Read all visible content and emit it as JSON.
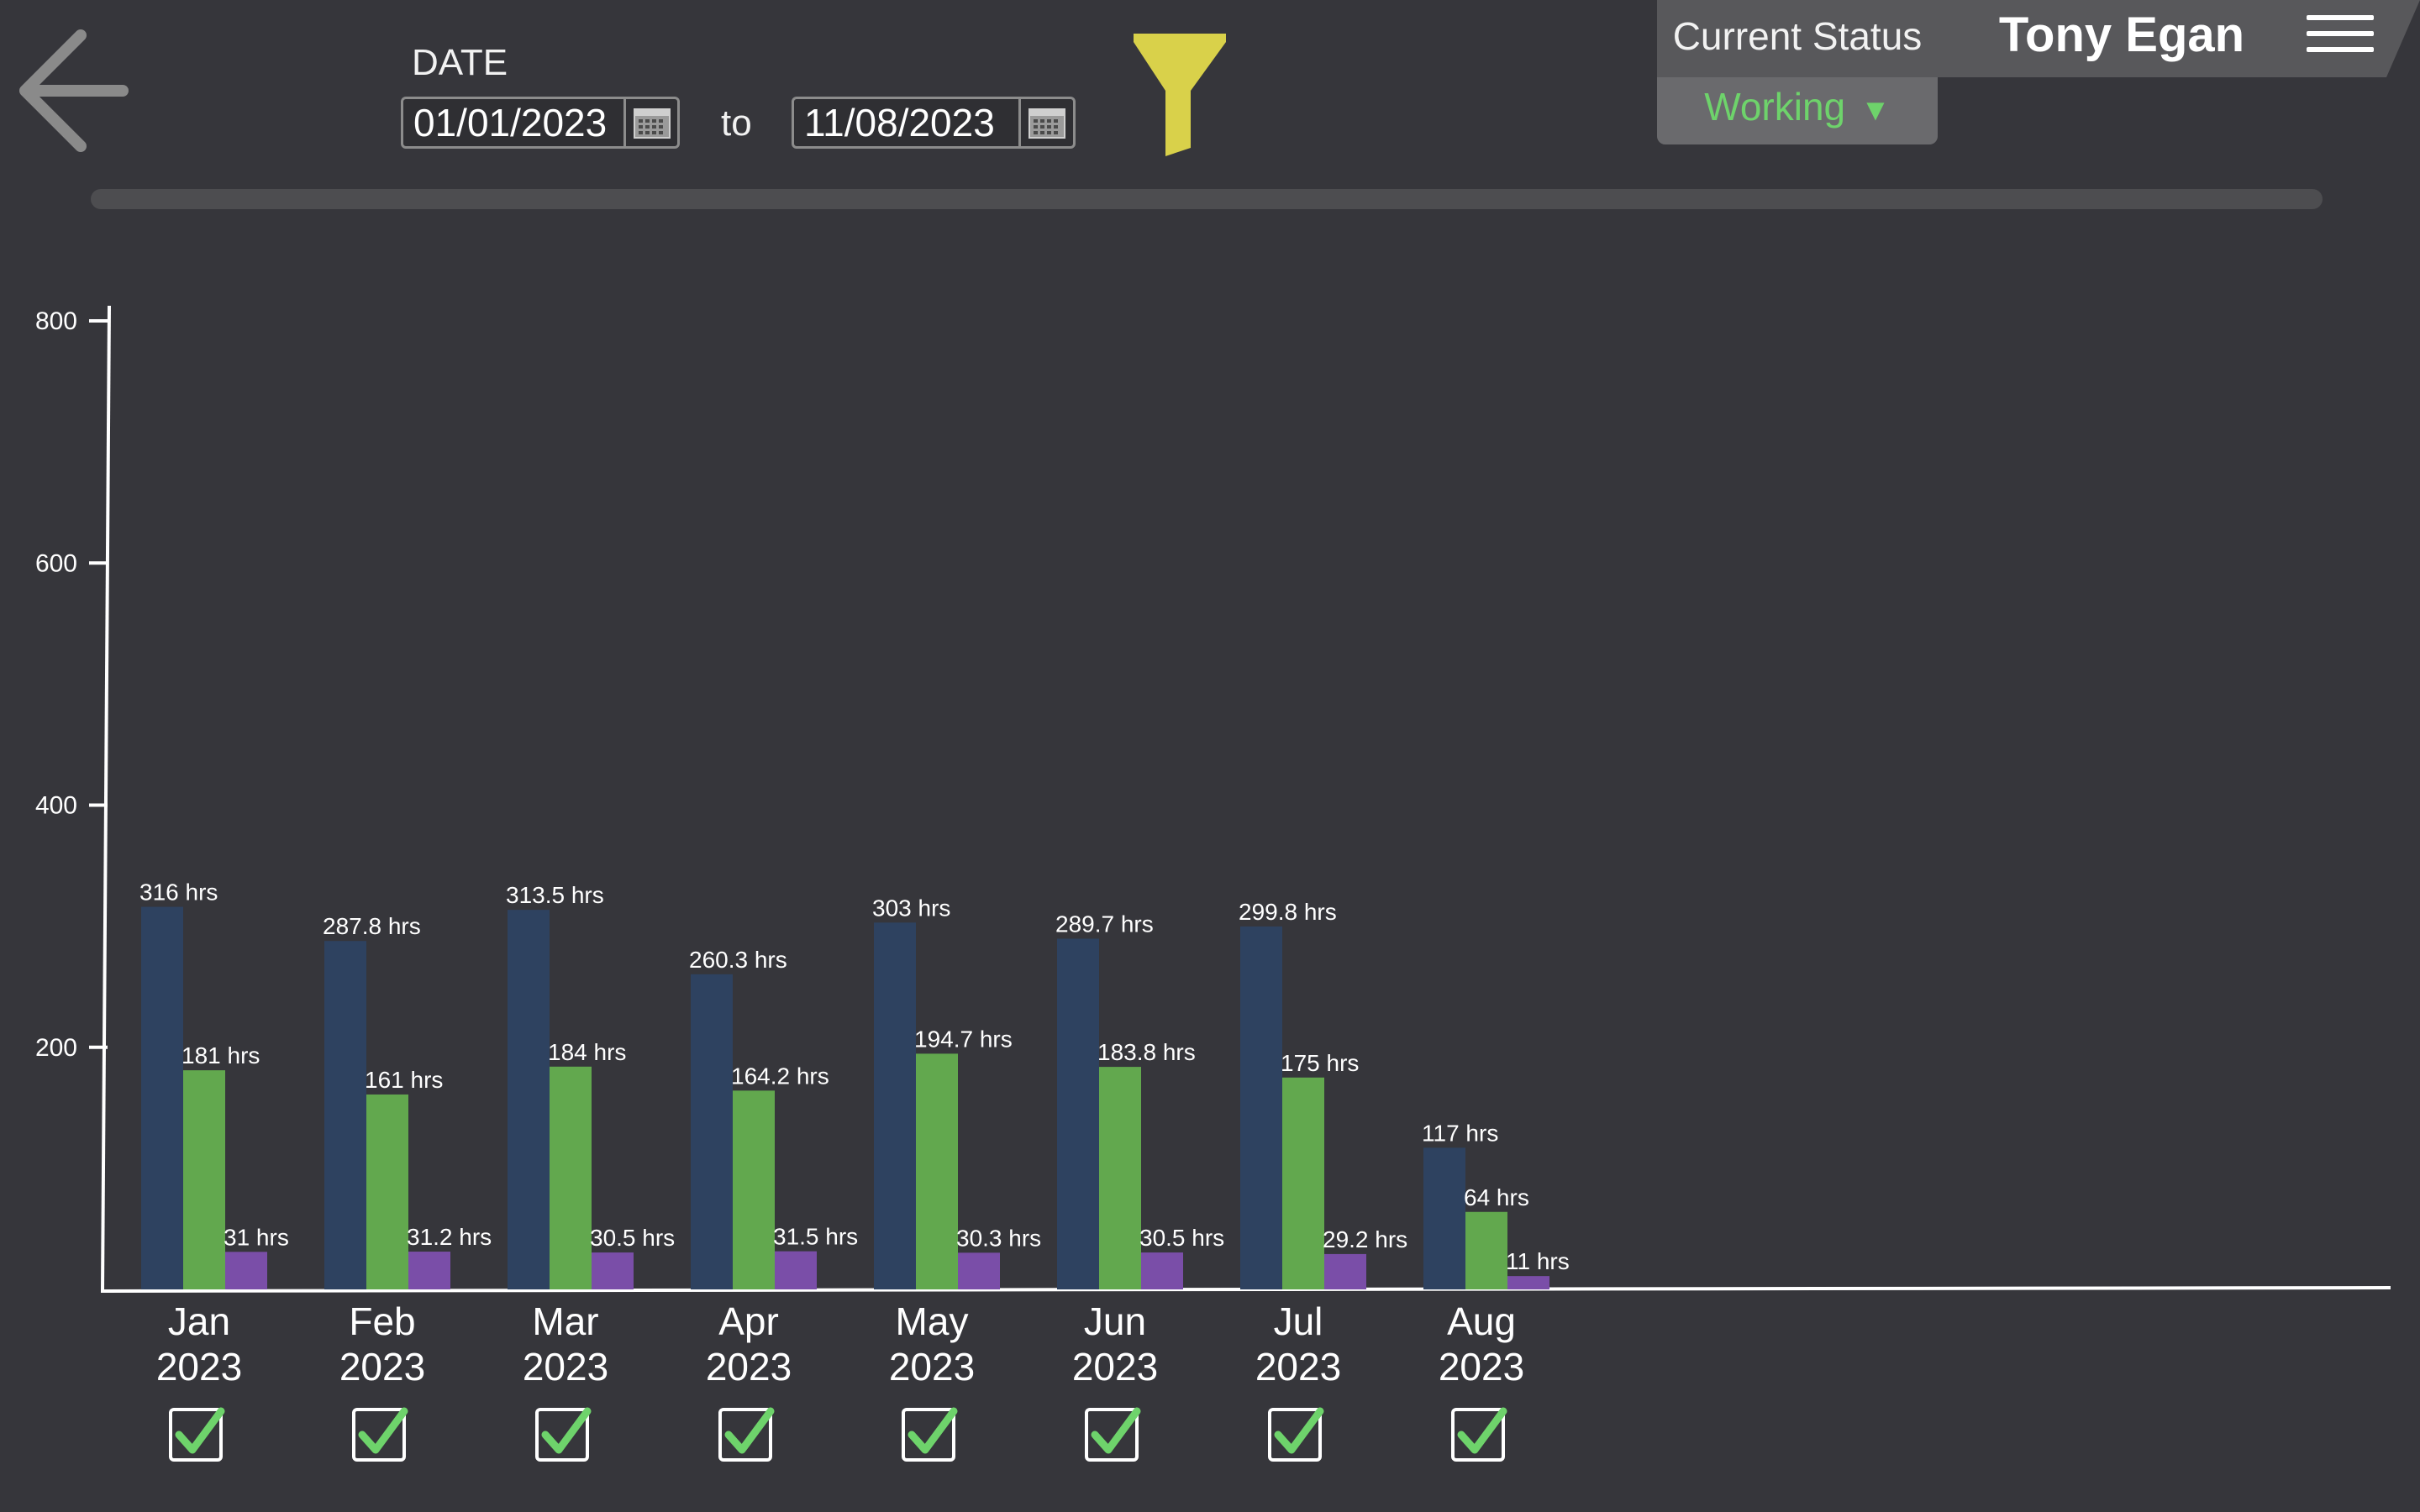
{
  "header": {
    "date_label": "DATE",
    "start_date": "01/01/2023",
    "to_label": "to",
    "end_date": "11/08/2023",
    "filter_color": "#d9d14a"
  },
  "status": {
    "label": "Current Status",
    "value": "Working",
    "value_color": "#6ed36b"
  },
  "user": {
    "name": "Tony Egan"
  },
  "chart_data": {
    "type": "bar",
    "categories": [
      "Jan 2023",
      "Feb 2023",
      "Mar 2023",
      "Apr 2023",
      "May 2023",
      "Jun 2023",
      "Jul 2023",
      "Aug 2023"
    ],
    "ylim": [
      0,
      800
    ],
    "yticks": [
      200,
      400,
      600,
      800
    ],
    "grid": false,
    "series": [
      {
        "color": "#2e4260",
        "values": [
          316,
          287.8,
          313.5,
          260.3,
          303,
          289.7,
          299.8,
          117
        ],
        "labels": [
          "316 hrs",
          "287.8 hrs",
          "313.5 hrs",
          "260.3 hrs",
          "303 hrs",
          "289.7 hrs",
          "299.8 hrs",
          "117 hrs"
        ]
      },
      {
        "color": "#62a84e",
        "values": [
          181,
          161,
          184,
          164.2,
          194.7,
          183.8,
          175,
          64
        ],
        "labels": [
          "181 hrs",
          "161 hrs",
          "184 hrs",
          "164.2 hrs",
          "194.7 hrs",
          "183.8 hrs",
          "175 hrs",
          "64 hrs"
        ]
      },
      {
        "color": "#7a4ea8",
        "values": [
          31,
          31.2,
          30.5,
          31.5,
          30.3,
          30.5,
          29.2,
          11
        ],
        "labels": [
          "31 hrs",
          "31.2 hrs",
          "30.5 hrs",
          "31.5 hrs",
          "30.3 hrs",
          "30.5 hrs",
          "29.2 hrs",
          "11 hrs"
        ]
      }
    ]
  },
  "months": [
    {
      "month": "Jan",
      "year": "2023",
      "checked": true
    },
    {
      "month": "Feb",
      "year": "2023",
      "checked": true
    },
    {
      "month": "Mar",
      "year": "2023",
      "checked": true
    },
    {
      "month": "Apr",
      "year": "2023",
      "checked": true
    },
    {
      "month": "May",
      "year": "2023",
      "checked": true
    },
    {
      "month": "Jun",
      "year": "2023",
      "checked": true
    },
    {
      "month": "Jul",
      "year": "2023",
      "checked": true
    },
    {
      "month": "Aug",
      "year": "2023",
      "checked": true
    }
  ]
}
